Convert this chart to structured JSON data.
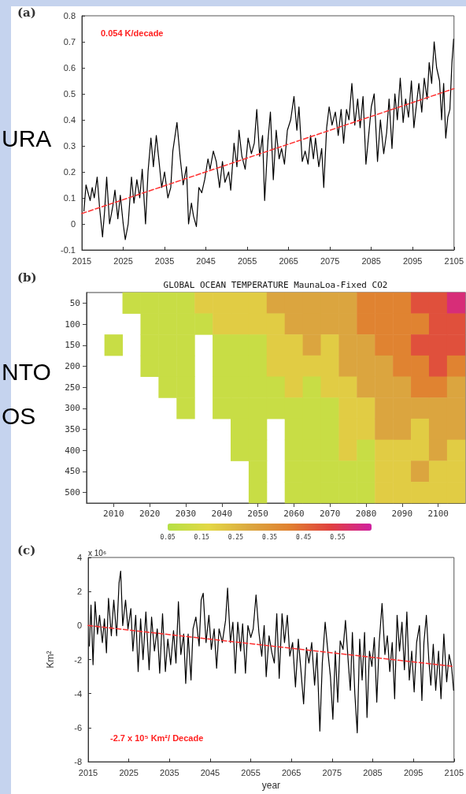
{
  "chart_data": [
    {
      "type": "line",
      "title": "(a)",
      "annotations": [
        "0.054 K/decade",
        "URA"
      ],
      "xlim": [
        2015,
        2105
      ],
      "xticks": [
        2015,
        2025,
        2035,
        2045,
        2055,
        2065,
        2075,
        2085,
        2095,
        2105
      ],
      "ylim": [
        -0.1,
        0.8
      ],
      "yticks": [
        -0.1,
        0,
        0.1,
        0.2,
        0.3,
        0.4,
        0.5,
        0.6,
        0.7,
        0.8
      ],
      "series": [
        {
          "color": "#000000",
          "x": [
            2015.5,
            2016,
            2017,
            2017.5,
            2018,
            2018.7,
            2019.3,
            2020,
            2020.5,
            2021,
            2021.7,
            2022.5,
            2023,
            2023.7,
            2024.3,
            2025,
            2025.5,
            2026.2,
            2027,
            2027.6,
            2028.3,
            2029,
            2029.6,
            2030.4,
            2031,
            2031.7,
            2032.3,
            2033,
            2033.6,
            2034.3,
            2035,
            2035.8,
            2036.5,
            2037,
            2038,
            2038.8,
            2039.5,
            2040.3,
            2040.8,
            2041.5,
            2042,
            2042.7,
            2043.3,
            2044,
            2044.7,
            2045.5,
            2046,
            2046.8,
            2047.5,
            2048.3,
            2049,
            2049.6,
            2050.5,
            2051,
            2051.8,
            2052.5,
            2053,
            2053.7,
            2054.5,
            2055.2,
            2056,
            2056.7,
            2057.3,
            2058,
            2058.7,
            2059.2,
            2060,
            2060.6,
            2061.3,
            2062,
            2062.7,
            2063.3,
            2064,
            2064.7,
            2065.5,
            2066.3,
            2067,
            2067.5,
            2068.3,
            2069,
            2069.7,
            2070.3,
            2071,
            2071.5,
            2072.3,
            2073,
            2073.5,
            2074.2,
            2074.8,
            2075.5,
            2076.3,
            2077,
            2077.7,
            2078.3,
            2079,
            2079.6,
            2080.3,
            2081,
            2081.7,
            2082.3,
            2083,
            2083.7,
            2084.3,
            2085,
            2085.7,
            2086.5,
            2087.2,
            2088,
            2088.7,
            2089.3,
            2090,
            2090.7,
            2091.3,
            2092,
            2092.7,
            2093.3,
            2094,
            2094.7,
            2095.3,
            2096,
            2096.5,
            2097.2,
            2097.8,
            2098.5,
            2099,
            2099.6,
            2100.2,
            2100.8,
            2101.5,
            2102,
            2102.5,
            2103,
            2103.5,
            2104,
            2104.5,
            2104.9
          ],
          "values": [
            0.05,
            0.15,
            0.09,
            0.14,
            0.1,
            0.18,
            0.06,
            -0.05,
            0.05,
            0.18,
            0,
            0.07,
            0.13,
            0.02,
            0.11,
            0,
            -0.06,
            0,
            0.18,
            0.08,
            0.17,
            0.1,
            0.21,
            0,
            0.2,
            0.33,
            0.22,
            0.34,
            0.25,
            0.14,
            0.2,
            0.1,
            0.14,
            0.28,
            0.39,
            0.25,
            0.15,
            0.22,
            0,
            0.08,
            0.03,
            -0.01,
            0.14,
            0.12,
            0.17,
            0.25,
            0.21,
            0.28,
            0.24,
            0.14,
            0.24,
            0.16,
            0.2,
            0.13,
            0.31,
            0.22,
            0.36,
            0.26,
            0.21,
            0.33,
            0.27,
            0.31,
            0.44,
            0.26,
            0.34,
            0.09,
            0.32,
            0.43,
            0.17,
            0.36,
            0.25,
            0.29,
            0.23,
            0.36,
            0.4,
            0.49,
            0.36,
            0.45,
            0.24,
            0.28,
            0.23,
            0.34,
            0.25,
            0.33,
            0.22,
            0.29,
            0.14,
            0.37,
            0.45,
            0.38,
            0.43,
            0.34,
            0.44,
            0.31,
            0.44,
            0.4,
            0.54,
            0.38,
            0.48,
            0.37,
            0.49,
            0.23,
            0.33,
            0.45,
            0.5,
            0.24,
            0.4,
            0.27,
            0.35,
            0.48,
            0.29,
            0.5,
            0.4,
            0.56,
            0.39,
            0.48,
            0.41,
            0.55,
            0.37,
            0.47,
            0.54,
            0.43,
            0.56,
            0.48,
            0.62,
            0.54,
            0.7,
            0.6,
            0.55,
            0.4,
            0.54,
            0.33,
            0.41,
            0.44,
            0.62,
            0.71
          ]
        },
        {
          "color": "#ff3030",
          "line_style": "dashed",
          "x": [
            2015,
            2105
          ],
          "values": [
            0.04,
            0.52
          ]
        }
      ]
    },
    {
      "type": "heatmap",
      "title": "(b)",
      "subtitle": "GLOBAL OCEAN TEMPERATURE MaunaLoa-Fixed CO2",
      "annotations": [
        "NTO",
        "OS"
      ],
      "categories": [
        null,
        "2010",
        null,
        "2020",
        null,
        "2030",
        null,
        "2040",
        null,
        "2050",
        null,
        "2060",
        null,
        "2070",
        null,
        "2080",
        null,
        "2090",
        null,
        "2100",
        null
      ],
      "y_categories": [
        "50",
        "100",
        "150",
        "200",
        "250",
        "300",
        "350",
        "400",
        "450",
        "500"
      ],
      "cells": [
        [
          null,
          null,
          0.1,
          0.1,
          0.1,
          0.1,
          0.2,
          0.2,
          0.2,
          0.2,
          0.3,
          0.3,
          0.3,
          0.3,
          0.3,
          0.4,
          0.4,
          0.4,
          0.5,
          0.5,
          0.6
        ],
        [
          null,
          null,
          null,
          0.1,
          0.1,
          0.1,
          0.1,
          0.2,
          0.2,
          0.2,
          0.2,
          0.3,
          0.3,
          0.3,
          0.3,
          0.4,
          0.4,
          0.4,
          0.4,
          0.5,
          0.5
        ],
        [
          null,
          0.1,
          null,
          0.1,
          0.1,
          0.1,
          null,
          0.1,
          0.1,
          0.1,
          0.2,
          0.2,
          0.3,
          0.2,
          0.3,
          0.3,
          0.4,
          0.4,
          0.5,
          0.5,
          0.5
        ],
        [
          null,
          null,
          null,
          0.1,
          0.1,
          0.1,
          null,
          0.1,
          0.1,
          0.1,
          0.2,
          0.2,
          0.2,
          0.2,
          0.3,
          0.3,
          0.3,
          0.4,
          0.4,
          0.5,
          0.4
        ],
        [
          null,
          null,
          null,
          null,
          0.1,
          0.1,
          null,
          0.1,
          0.1,
          0.1,
          0.1,
          0.2,
          0.1,
          0.2,
          0.2,
          0.3,
          0.3,
          0.3,
          0.4,
          0.4,
          0.3
        ],
        [
          null,
          null,
          null,
          null,
          null,
          0.1,
          null,
          0.1,
          0.1,
          0.1,
          0.1,
          0.1,
          0.1,
          0.1,
          0.2,
          0.2,
          0.3,
          0.3,
          0.3,
          0.3,
          0.3
        ],
        [
          null,
          null,
          null,
          null,
          null,
          null,
          null,
          null,
          0.1,
          0.1,
          null,
          0.1,
          0.1,
          0.1,
          0.2,
          0.2,
          0.3,
          0.3,
          0.2,
          0.3,
          0.3
        ],
        [
          null,
          null,
          null,
          null,
          null,
          null,
          null,
          null,
          0.1,
          0.1,
          null,
          0.1,
          0.1,
          0.1,
          0.2,
          0.1,
          0.2,
          0.2,
          0.2,
          0.3,
          0.2
        ],
        [
          null,
          null,
          null,
          null,
          null,
          null,
          null,
          null,
          null,
          0.1,
          null,
          0.1,
          0.1,
          0.1,
          0.1,
          0.1,
          0.2,
          0.2,
          0.3,
          0.2,
          0.2
        ],
        [
          null,
          null,
          null,
          null,
          null,
          null,
          null,
          null,
          null,
          0.1,
          null,
          0.1,
          0.1,
          0.1,
          0.1,
          0.1,
          0.2,
          0.2,
          0.2,
          0.2,
          0.2
        ]
      ],
      "clim": [
        0.05,
        0.65
      ],
      "cticks": [
        0.05,
        0.15,
        0.25,
        0.35,
        0.45,
        0.55
      ],
      "colors": [
        "#b5e045",
        "#e3d845",
        "#dba840",
        "#e08030",
        "#e04040",
        "#d020a0"
      ]
    },
    {
      "type": "line",
      "title": "(c)",
      "xlabel": "year",
      "ylabel": "Km²",
      "annotations": [
        "x 10⁶",
        "-2.7 x 10⁵ Km²/ Decade"
      ],
      "xlim": [
        2015,
        2105
      ],
      "xticks": [
        2015,
        2025,
        2035,
        2045,
        2055,
        2065,
        2075,
        2085,
        2095,
        2105
      ],
      "ylim": [
        -8,
        4
      ],
      "yticks": [
        -8,
        -6,
        -4,
        -2,
        0,
        2,
        4
      ],
      "series": [
        {
          "color": "#000000",
          "x": [
            2015.3,
            2015.7,
            2016.2,
            2016.7,
            2017.3,
            2017.8,
            2018.5,
            2019,
            2019.5,
            2020,
            2020.7,
            2021.3,
            2022,
            2022.6,
            2023,
            2023.5,
            2024.2,
            2024.8,
            2025.5,
            2026,
            2026.7,
            2027.3,
            2027.9,
            2028.5,
            2029.2,
            2030,
            2030.6,
            2031.3,
            2032,
            2032.6,
            2033.3,
            2034,
            2034.6,
            2035.3,
            2036,
            2036.6,
            2037.2,
            2037.8,
            2038.5,
            2039,
            2039.6,
            2040.3,
            2040.8,
            2041.5,
            2042.3,
            2042.8,
            2043.3,
            2044,
            2044.7,
            2045.3,
            2046,
            2046.6,
            2047.2,
            2048,
            2048.8,
            2049.3,
            2050,
            2050.6,
            2051.2,
            2051.8,
            2052.5,
            2053,
            2053.7,
            2054.3,
            2055,
            2055.6,
            2056.3,
            2057,
            2057.7,
            2058.3,
            2058.8,
            2059.5,
            2060.2,
            2060.8,
            2061.4,
            2062,
            2062.7,
            2063.3,
            2064,
            2064.6,
            2065.3,
            2066,
            2066.7,
            2067.3,
            2068,
            2068.7,
            2069.3,
            2070,
            2070.7,
            2071.3,
            2072,
            2072.6,
            2073.3,
            2074,
            2074.6,
            2075.2,
            2075.8,
            2076.4,
            2077,
            2077.7,
            2078.3,
            2079,
            2079.5,
            2080,
            2080.6,
            2081.2,
            2081.8,
            2082.4,
            2083,
            2083.6,
            2084.2,
            2084.8,
            2085.4,
            2086,
            2086.6,
            2087.3,
            2088,
            2088.6,
            2089.2,
            2089.8,
            2090.4,
            2091,
            2091.6,
            2092.2,
            2092.8,
            2093.4,
            2094,
            2094.6,
            2095.2,
            2095.8,
            2096.5,
            2097.1,
            2097.6,
            2098.2,
            2098.8,
            2099.3,
            2099.9,
            2100.5,
            2101.2,
            2101.8,
            2102.5,
            2103.2,
            2103.8,
            2104.4,
            2104.9
          ],
          "values": [
            -1.2,
            1.2,
            -2.3,
            1.4,
            -0.5,
            0.6,
            -1,
            0.4,
            -1.6,
            1.6,
            -0.6,
            1.5,
            -0.6,
            2.5,
            3.2,
            0,
            1.5,
            -0.2,
            1,
            -1.5,
            0.6,
            -2.7,
            0.4,
            -2,
            0.8,
            -2.6,
            0.5,
            -1.5,
            -0.2,
            -2.8,
            0.7,
            -2.7,
            -0.8,
            -2.3,
            -0.3,
            -2.2,
            1.4,
            -1.7,
            -0.5,
            -3.4,
            -0.5,
            -3.2,
            -0.2,
            0.5,
            -1.2,
            1.5,
            1.9,
            -1,
            0.6,
            -1.4,
            -0.2,
            -2.5,
            -0.2,
            -1,
            0.3,
            2.2,
            -1,
            0.2,
            -2.8,
            0.2,
            -1.5,
            0.1,
            -2.8,
            0,
            -0.7,
            -0.2,
            1.8,
            -0.4,
            -1.8,
            0,
            -3,
            -0.6,
            -1.6,
            -2.2,
            0.7,
            -3.1,
            0.7,
            -1,
            0.6,
            -1.8,
            -1,
            -3.6,
            -0.8,
            -2.5,
            -4.6,
            -1.3,
            -2.2,
            -1,
            -3.5,
            -1.6,
            -6.2,
            -2.2,
            0.2,
            -1.6,
            -3,
            -5.5,
            -1.5,
            -4.5,
            -0.9,
            -1.4,
            0.3,
            -2.2,
            -3.8,
            -0.4,
            -4,
            -6.3,
            -0.8,
            -3.2,
            -0.4,
            -5.4,
            -1.5,
            -2.4,
            -0.7,
            -4.5,
            -1,
            1.3,
            -1.7,
            -0.6,
            -2.7,
            -1,
            -4.3,
            0.6,
            -1.5,
            0.2,
            -2.6,
            0.8,
            -3.2,
            -1.5,
            -3.9,
            -1,
            0,
            -4.4,
            -1,
            0.6,
            -2,
            -3.5,
            -1.1,
            -3.8,
            -1.5,
            -4.3,
            -0.5,
            -3.3,
            -1.7,
            -2.4,
            -3.8
          ]
        },
        {
          "color": "#ff3030",
          "line_style": "dashed",
          "x": [
            2015,
            2105
          ],
          "values": [
            0,
            -2.4
          ]
        }
      ]
    }
  ]
}
